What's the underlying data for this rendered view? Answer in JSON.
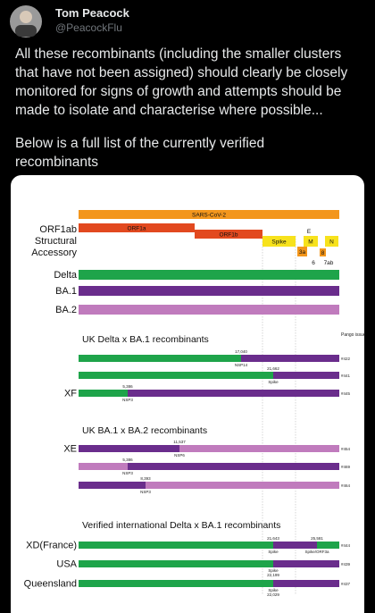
{
  "author": {
    "name": "Tom Peacock",
    "handle": "@PeacockFlu"
  },
  "tweet": {
    "lines": [
      "All these recombinants (including the smaller clusters",
      "that have not been assigned) should clearly be closely",
      "monitored for signs of growth and attempts should be",
      "made to isolate and characterise where possible...",
      "Below is a full list of the currently verified",
      "recombinants"
    ]
  },
  "figure": {
    "genome": {
      "title": "SARS-CoV-2",
      "orf1a": "ORF1a",
      "orf1b": "ORF1b",
      "spike": "Spike",
      "e": "E",
      "m": "M",
      "n": "N",
      "orf3a": "3a",
      "orf6": "6",
      "orf7ab": "7ab",
      "orf8": "8"
    },
    "row_labels": {
      "orf1ab": "ORF1ab",
      "structural": "Structural",
      "accessory": "Accessory"
    },
    "lineages": [
      "Delta",
      "BA.1",
      "BA.2"
    ],
    "pango_header": "Pango issue",
    "sections": [
      {
        "title": "UK Delta x BA.1 recombinants",
        "rows": [
          {
            "breakpoints": [
              {
                "position": "17,040",
                "region": "NSP14"
              }
            ],
            "issue": "#422"
          },
          {
            "breakpoints": [
              {
                "position": "21,662",
                "region": "Spike"
              }
            ],
            "issue": "#441"
          },
          {
            "name": "XF",
            "breakpoints": [
              {
                "position": "5,386",
                "region": "NSP3"
              }
            ],
            "issue": "#445"
          }
        ]
      },
      {
        "title": "UK BA.1 x BA.2 recombinants",
        "rows": [
          {
            "name": "XE",
            "breakpoints": [
              {
                "position": "11,537",
                "region": "NSP6"
              }
            ],
            "issue": "#454"
          },
          {
            "breakpoints": [
              {
                "position": "5,386",
                "region": "NSP3"
              }
            ],
            "issue": "#469"
          },
          {
            "breakpoints": [
              {
                "position": "8,393",
                "region": "NSP3"
              }
            ],
            "issue": "#464"
          }
        ]
      },
      {
        "title": "Verified international Delta x BA.1 recombinants",
        "rows": [
          {
            "name": "XD(France)",
            "breakpoints": [
              {
                "position": "21,643",
                "region": "Spike"
              },
              {
                "position": "25,581",
                "region": "Spike/ORF3a"
              }
            ],
            "issue": "#444"
          },
          {
            "name": "USA",
            "breakpoints": [
              {
                "position": "22,199",
                "region": "Spike"
              }
            ],
            "issue": "#439"
          },
          {
            "name": "Queensland",
            "breakpoints": [
              {
                "position": "22,029",
                "region": "Spike"
              }
            ],
            "issue": "#437"
          }
        ]
      }
    ]
  }
}
